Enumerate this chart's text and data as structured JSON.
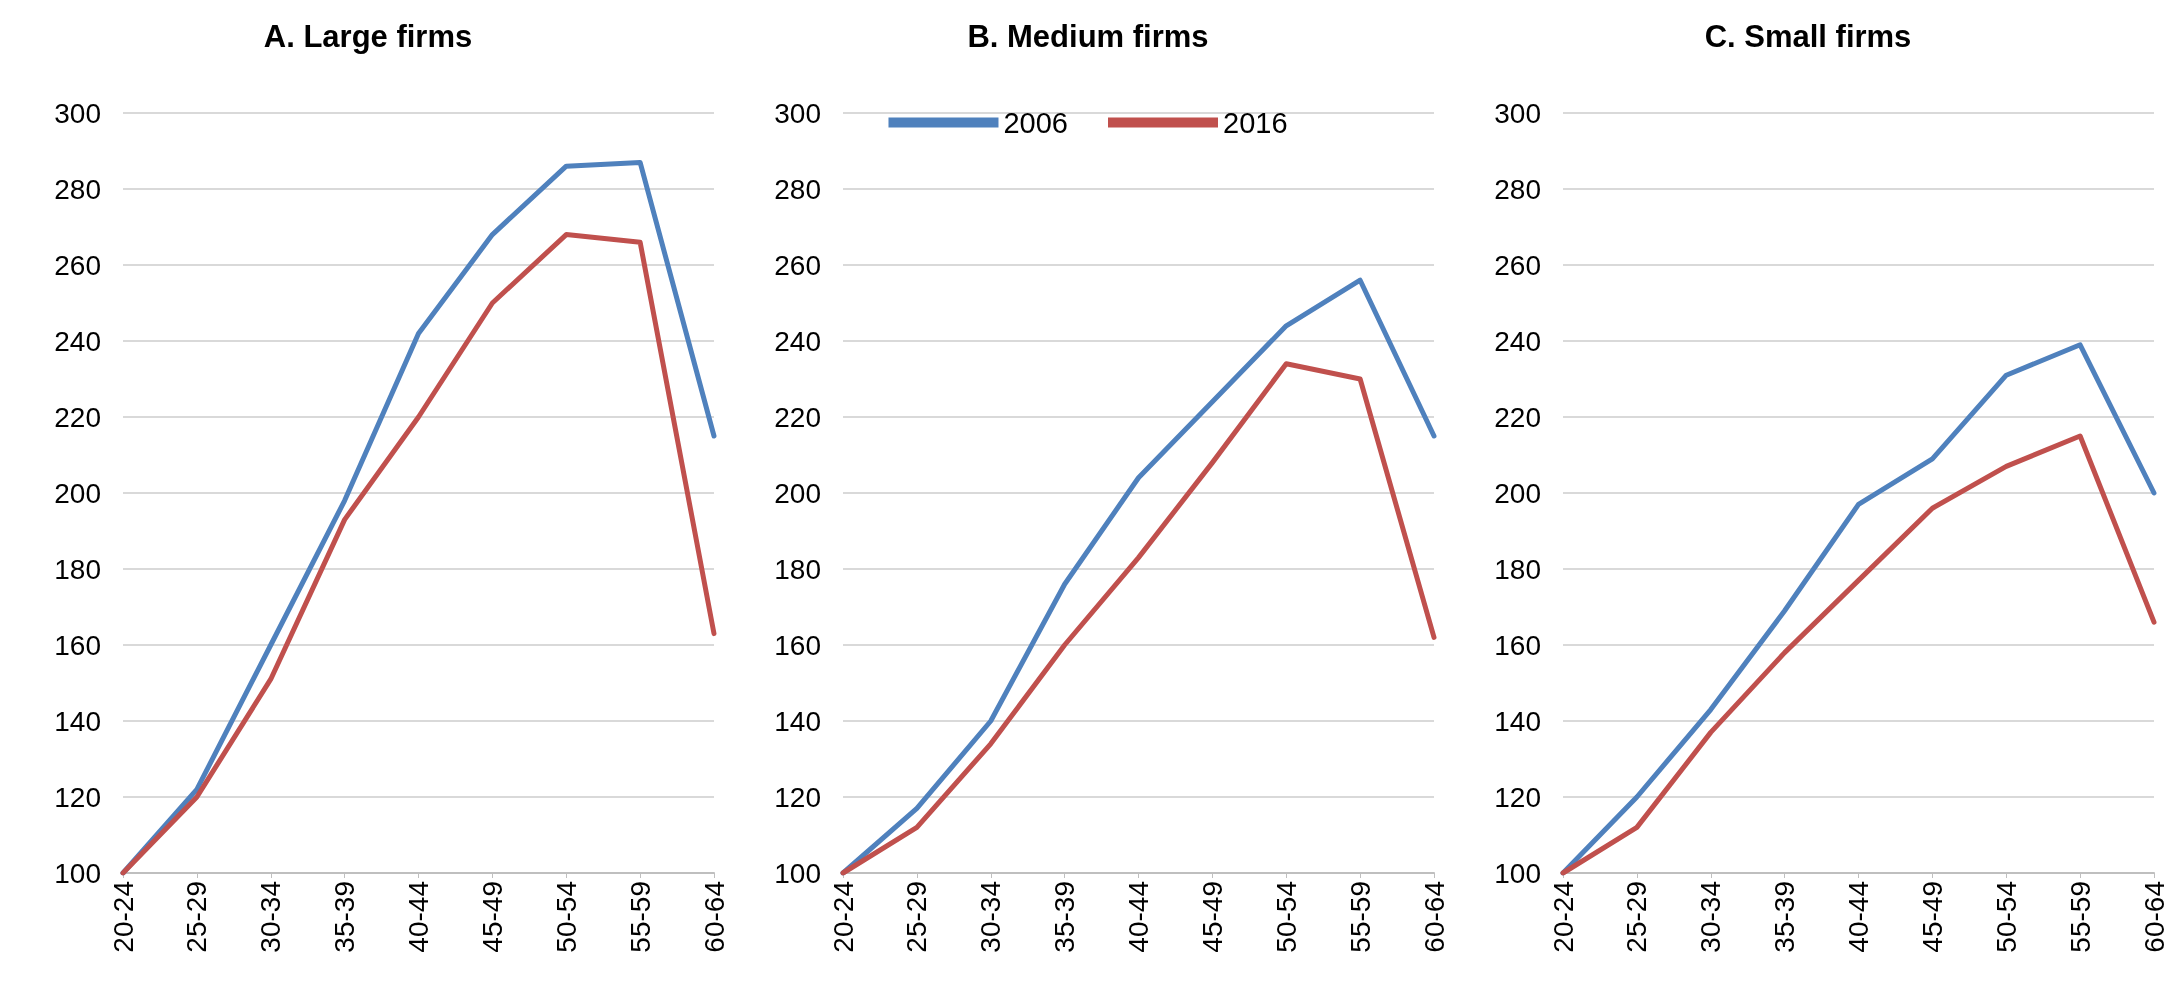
{
  "chart_data": [
    {
      "type": "line",
      "title": "A. Large firms",
      "categories": [
        "20-24",
        "25-29",
        "30-34",
        "35-39",
        "40-44",
        "45-49",
        "50-54",
        "55-59",
        "60-64"
      ],
      "series": [
        {
          "color": "#4f81bd",
          "values": [
            100,
            122,
            160,
            198,
            242,
            268,
            286,
            287,
            215
          ]
        },
        {
          "color": "#c0504d",
          "values": [
            100,
            120,
            151,
            193,
            220,
            250,
            268,
            266,
            163
          ]
        }
      ],
      "ylim": [
        100,
        300
      ],
      "yticks": [
        100,
        120,
        140,
        160,
        180,
        200,
        220,
        240,
        260,
        280,
        300
      ],
      "grid": "y",
      "legend": false,
      "marker": "none",
      "line_style": "solid"
    },
    {
      "type": "line",
      "title": "B. Medium firms",
      "categories": [
        "20-24",
        "25-29",
        "30-34",
        "35-39",
        "40-44",
        "45-49",
        "50-54",
        "55-59",
        "60-64"
      ],
      "series": [
        {
          "name": "2006",
          "color": "#4f81bd",
          "values": [
            100,
            117,
            140,
            176,
            204,
            224,
            244,
            256,
            215
          ]
        },
        {
          "name": "2016",
          "color": "#c0504d",
          "values": [
            100,
            112,
            134,
            160,
            183,
            208,
            234,
            230,
            162
          ]
        }
      ],
      "ylim": [
        100,
        300
      ],
      "yticks": [
        100,
        120,
        140,
        160,
        180,
        200,
        220,
        240,
        260,
        280,
        300
      ],
      "grid": "y",
      "legend": "top",
      "marker": "none",
      "line_style": "solid"
    },
    {
      "type": "line",
      "title": "C. Small firms",
      "categories": [
        "20-24",
        "25-29",
        "30-34",
        "35-39",
        "40-44",
        "45-49",
        "50-54",
        "55-59",
        "60-64"
      ],
      "series": [
        {
          "color": "#4f81bd",
          "values": [
            100,
            120,
            143,
            169,
            197,
            209,
            231,
            239,
            200
          ]
        },
        {
          "color": "#c0504d",
          "values": [
            100,
            112,
            137,
            158,
            177,
            196,
            207,
            215,
            166
          ]
        }
      ],
      "ylim": [
        100,
        300
      ],
      "yticks": [
        100,
        120,
        140,
        160,
        180,
        200,
        220,
        240,
        260,
        280,
        300
      ],
      "grid": "y",
      "legend": false,
      "marker": "none",
      "line_style": "solid"
    }
  ]
}
